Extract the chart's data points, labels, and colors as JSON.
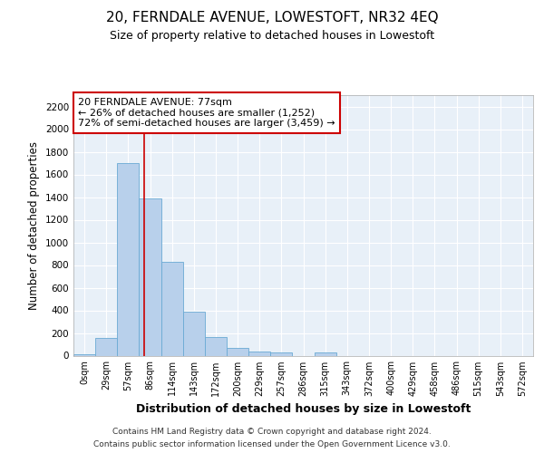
{
  "title": "20, FERNDALE AVENUE, LOWESTOFT, NR32 4EQ",
  "subtitle": "Size of property relative to detached houses in Lowestoft",
  "xlabel": "Distribution of detached houses by size in Lowestoft",
  "ylabel": "Number of detached properties",
  "bar_color": "#b8d0eb",
  "bar_edge_color": "#6aaad4",
  "background_color": "#e8f0f8",
  "grid_color": "#ffffff",
  "bin_labels": [
    "0sqm",
    "29sqm",
    "57sqm",
    "86sqm",
    "114sqm",
    "143sqm",
    "172sqm",
    "200sqm",
    "229sqm",
    "257sqm",
    "286sqm",
    "315sqm",
    "343sqm",
    "372sqm",
    "400sqm",
    "429sqm",
    "458sqm",
    "486sqm",
    "515sqm",
    "543sqm",
    "572sqm"
  ],
  "bar_heights": [
    15,
    155,
    1700,
    1390,
    825,
    385,
    165,
    65,
    35,
    30,
    0,
    30,
    0,
    0,
    0,
    0,
    0,
    0,
    0,
    0,
    0
  ],
  "ylim": [
    0,
    2300
  ],
  "yticks": [
    0,
    200,
    400,
    600,
    800,
    1000,
    1200,
    1400,
    1600,
    1800,
    2000,
    2200
  ],
  "annotation_text": "20 FERNDALE AVENUE: 77sqm\n← 26% of detached houses are smaller (1,252)\n72% of semi-detached houses are larger (3,459) →",
  "vline_color": "#cc0000",
  "vline_x": 2.72,
  "footer_line1": "Contains HM Land Registry data © Crown copyright and database right 2024.",
  "footer_line2": "Contains public sector information licensed under the Open Government Licence v3.0."
}
